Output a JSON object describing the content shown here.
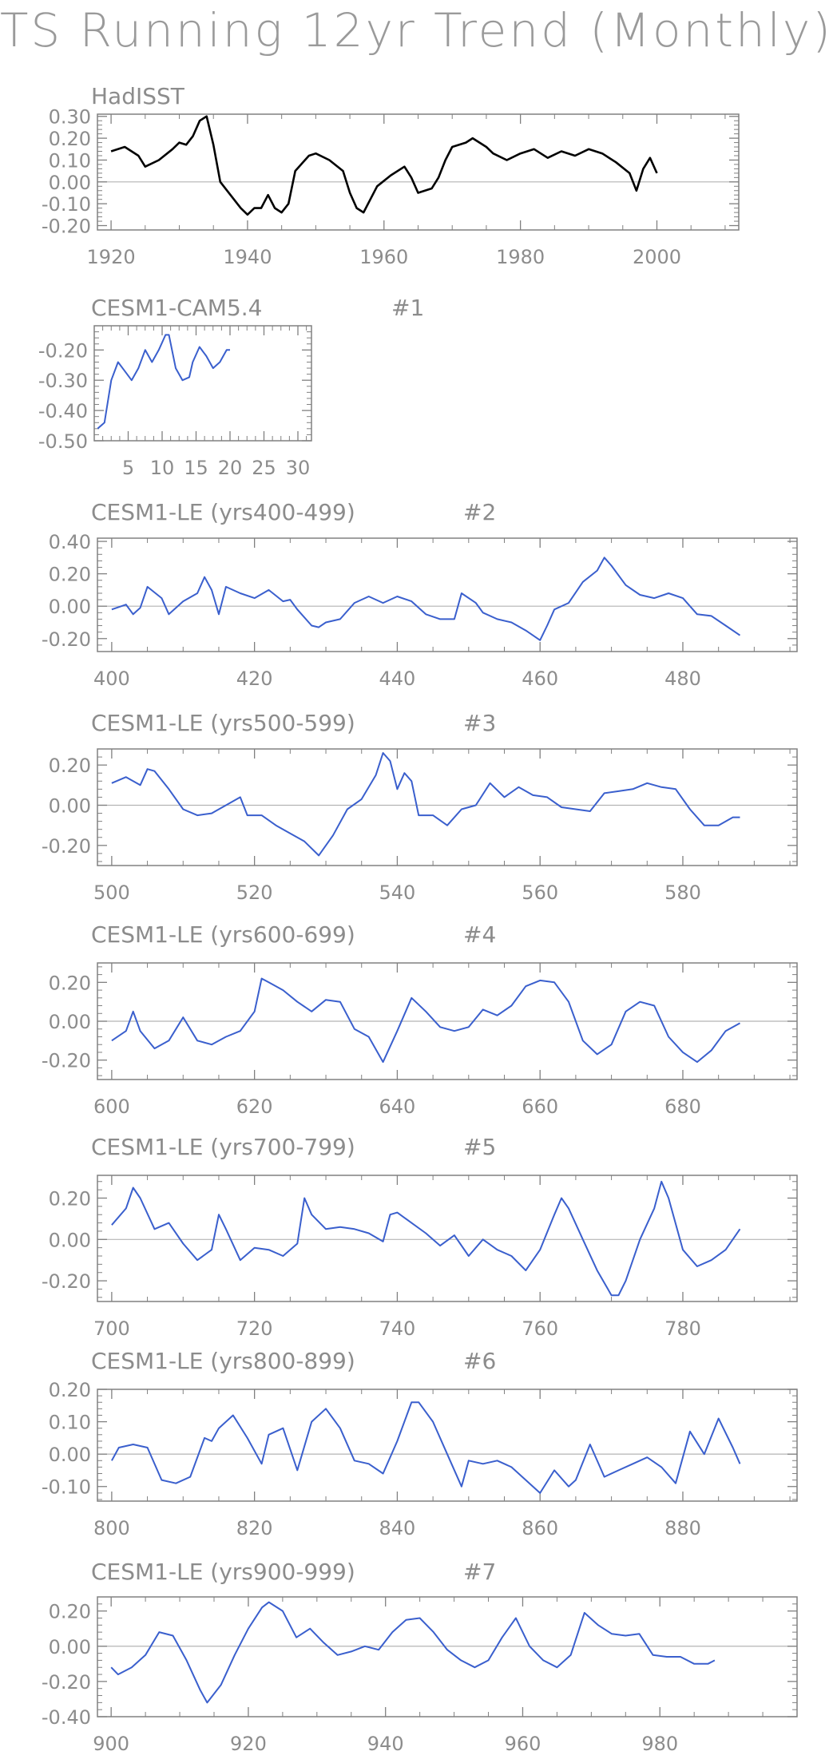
{
  "title": "TS Running 12yr Trend (Monthly)",
  "colors": {
    "obs": "#000000",
    "model": "#3a5fcd",
    "axis": "#808080",
    "zero": "#b4b4b4",
    "text": "#8c8c8c"
  },
  "chart_data": [
    {
      "type": "line",
      "title": "HadISST",
      "subtitle": "",
      "xlim": [
        1918,
        2012
      ],
      "ylim": [
        -0.22,
        0.31
      ],
      "xticks": [
        "1920",
        "1940",
        "1960",
        "1980",
        "2000"
      ],
      "xtick_values": [
        1920,
        1940,
        1960,
        1980,
        2000
      ],
      "yticks": [
        "-0.20",
        "-0.10",
        "0.00",
        "0.10",
        "0.20",
        "0.30"
      ],
      "ytick_values": [
        -0.2,
        -0.1,
        0,
        0.1,
        0.2,
        0.3
      ],
      "series": [
        {
          "color": "#000000",
          "x": [
            1920,
            1922,
            1924,
            1925,
            1927,
            1929,
            1930,
            1931,
            1932,
            1933,
            1934,
            1935,
            1936,
            1938,
            1939,
            1940,
            1941,
            1942,
            1943,
            1944,
            1945,
            1946,
            1947,
            1949,
            1950,
            1952,
            1954,
            1955,
            1956,
            1957,
            1958,
            1959,
            1961,
            1963,
            1964,
            1965,
            1967,
            1968,
            1969,
            1970,
            1972,
            1973,
            1975,
            1976,
            1978,
            1980,
            1982,
            1984,
            1986,
            1988,
            1990,
            1992,
            1994,
            1996,
            1997,
            1998,
            1999,
            2000
          ],
          "y": [
            0.14,
            0.16,
            0.12,
            0.07,
            0.1,
            0.15,
            0.18,
            0.17,
            0.21,
            0.28,
            0.3,
            0.17,
            0.0,
            -0.08,
            -0.12,
            -0.15,
            -0.12,
            -0.12,
            -0.06,
            -0.12,
            -0.14,
            -0.1,
            0.05,
            0.12,
            0.13,
            0.1,
            0.05,
            -0.05,
            -0.12,
            -0.14,
            -0.08,
            -0.02,
            0.03,
            0.07,
            0.02,
            -0.05,
            -0.03,
            0.02,
            0.1,
            0.16,
            0.18,
            0.2,
            0.16,
            0.13,
            0.1,
            0.13,
            0.15,
            0.11,
            0.14,
            0.12,
            0.15,
            0.13,
            0.09,
            0.04,
            -0.04,
            0.06,
            0.11,
            0.04
          ]
        }
      ]
    },
    {
      "type": "line",
      "title": "CESM1-CAM5.4",
      "subtitle": "#1",
      "xlim": [
        0,
        32
      ],
      "ylim": [
        -0.5,
        -0.12
      ],
      "xticks": [
        "5",
        "10",
        "15",
        "20",
        "25",
        "30"
      ],
      "xtick_values": [
        5,
        10,
        15,
        20,
        25,
        30
      ],
      "yticks": [
        "-0.50",
        "-0.40",
        "-0.30",
        "-0.20"
      ],
      "ytick_values": [
        -0.5,
        -0.4,
        -0.3,
        -0.2
      ],
      "series": [
        {
          "color": "#3a5fcd",
          "x": [
            0.5,
            1.5,
            2.5,
            3.5,
            4.5,
            5.5,
            6.5,
            7.5,
            8.5,
            9.5,
            10.5,
            11,
            12,
            13,
            14,
            14.5,
            15.5,
            16.5,
            17.5,
            18.5,
            19.5,
            20
          ],
          "y": [
            -0.46,
            -0.44,
            -0.3,
            -0.24,
            -0.27,
            -0.3,
            -0.26,
            -0.2,
            -0.24,
            -0.2,
            -0.15,
            -0.15,
            -0.26,
            -0.3,
            -0.29,
            -0.24,
            -0.19,
            -0.22,
            -0.26,
            -0.24,
            -0.2,
            -0.2
          ]
        }
      ]
    },
    {
      "type": "line",
      "title": "CESM1-LE (yrs400-499)",
      "subtitle": "#2",
      "xlim": [
        398,
        496
      ],
      "ylim": [
        -0.28,
        0.42
      ],
      "xticks": [
        "400",
        "420",
        "440",
        "460",
        "480"
      ],
      "xtick_values": [
        400,
        420,
        440,
        460,
        480
      ],
      "yticks": [
        "-0.20",
        "0.00",
        "0.20",
        "0.40"
      ],
      "ytick_values": [
        -0.2,
        0,
        0.2,
        0.4
      ],
      "series": [
        {
          "color": "#3a5fcd",
          "x": [
            400,
            402,
            403,
            404,
            405,
            407,
            408,
            410,
            412,
            413,
            414,
            415,
            416,
            418,
            420,
            422,
            424,
            425,
            426,
            428,
            429,
            430,
            432,
            434,
            436,
            438,
            440,
            442,
            444,
            446,
            448,
            449,
            451,
            452,
            454,
            456,
            458,
            460,
            461,
            462,
            464,
            466,
            468,
            469,
            470,
            472,
            474,
            476,
            478,
            480,
            482,
            484,
            486,
            488
          ],
          "y": [
            -0.02,
            0.01,
            -0.05,
            -0.01,
            0.12,
            0.05,
            -0.05,
            0.03,
            0.08,
            0.18,
            0.1,
            -0.05,
            0.12,
            0.08,
            0.05,
            0.1,
            0.03,
            0.04,
            -0.02,
            -0.12,
            -0.13,
            -0.1,
            -0.08,
            0.02,
            0.06,
            0.02,
            0.06,
            0.03,
            -0.05,
            -0.08,
            -0.08,
            0.08,
            0.02,
            -0.04,
            -0.08,
            -0.1,
            -0.15,
            -0.21,
            -0.12,
            -0.02,
            0.02,
            0.15,
            0.22,
            0.3,
            0.25,
            0.13,
            0.07,
            0.05,
            0.08,
            0.05,
            -0.05,
            -0.06,
            -0.12,
            -0.18
          ]
        }
      ]
    },
    {
      "type": "line",
      "title": "CESM1-LE (yrs500-599)",
      "subtitle": "#3",
      "xlim": [
        498,
        596
      ],
      "ylim": [
        -0.3,
        0.28
      ],
      "xticks": [
        "500",
        "520",
        "540",
        "560",
        "580"
      ],
      "xtick_values": [
        500,
        520,
        540,
        560,
        580
      ],
      "yticks": [
        "-0.20",
        "0.00",
        "0.20"
      ],
      "ytick_values": [
        -0.2,
        0,
        0.2
      ],
      "series": [
        {
          "color": "#3a5fcd",
          "x": [
            500,
            502,
            504,
            505,
            506,
            508,
            510,
            512,
            514,
            516,
            518,
            519,
            521,
            523,
            525,
            527,
            529,
            531,
            533,
            535,
            537,
            538,
            539,
            540,
            541,
            542,
            543,
            545,
            547,
            549,
            551,
            553,
            555,
            557,
            559,
            561,
            563,
            565,
            567,
            569,
            571,
            573,
            575,
            577,
            579,
            581,
            583,
            585,
            587,
            588
          ],
          "y": [
            0.11,
            0.14,
            0.1,
            0.18,
            0.17,
            0.08,
            -0.02,
            -0.05,
            -0.04,
            0.0,
            0.04,
            -0.05,
            -0.05,
            -0.1,
            -0.14,
            -0.18,
            -0.25,
            -0.15,
            -0.02,
            0.03,
            0.15,
            0.26,
            0.22,
            0.08,
            0.16,
            0.12,
            -0.05,
            -0.05,
            -0.1,
            -0.02,
            0.0,
            0.11,
            0.04,
            0.09,
            0.05,
            0.04,
            -0.01,
            -0.02,
            -0.03,
            0.06,
            0.07,
            0.08,
            0.11,
            0.09,
            0.08,
            -0.02,
            -0.1,
            -0.1,
            -0.06,
            -0.06
          ]
        }
      ]
    },
    {
      "type": "line",
      "title": "CESM1-LE (yrs600-699)",
      "subtitle": "#4",
      "xlim": [
        598,
        696
      ],
      "ylim": [
        -0.3,
        0.3
      ],
      "xticks": [
        "600",
        "620",
        "640",
        "660",
        "680"
      ],
      "xtick_values": [
        600,
        620,
        640,
        660,
        680
      ],
      "yticks": [
        "-0.20",
        "0.00",
        "0.20"
      ],
      "ytick_values": [
        -0.2,
        0,
        0.2
      ],
      "series": [
        {
          "color": "#3a5fcd",
          "x": [
            600,
            602,
            603,
            604,
            606,
            608,
            610,
            612,
            614,
            616,
            618,
            620,
            621,
            622,
            624,
            626,
            628,
            630,
            632,
            634,
            636,
            638,
            640,
            642,
            644,
            646,
            648,
            650,
            652,
            654,
            656,
            658,
            660,
            662,
            664,
            666,
            668,
            670,
            672,
            674,
            676,
            678,
            680,
            682,
            684,
            686,
            688
          ],
          "y": [
            -0.1,
            -0.05,
            0.05,
            -0.05,
            -0.14,
            -0.1,
            0.02,
            -0.1,
            -0.12,
            -0.08,
            -0.05,
            0.05,
            0.22,
            0.2,
            0.16,
            0.1,
            0.05,
            0.11,
            0.1,
            -0.04,
            -0.08,
            -0.21,
            -0.05,
            0.12,
            0.05,
            -0.03,
            -0.05,
            -0.03,
            0.06,
            0.03,
            0.08,
            0.18,
            0.21,
            0.2,
            0.1,
            -0.1,
            -0.17,
            -0.12,
            0.05,
            0.1,
            0.08,
            -0.08,
            -0.16,
            -0.21,
            -0.15,
            -0.05,
            -0.01
          ]
        }
      ]
    },
    {
      "type": "line",
      "title": "CESM1-LE (yrs700-799)",
      "subtitle": "#5",
      "xlim": [
        698,
        796
      ],
      "ylim": [
        -0.3,
        0.31
      ],
      "xticks": [
        "700",
        "720",
        "740",
        "760",
        "780"
      ],
      "xtick_values": [
        700,
        720,
        740,
        760,
        780
      ],
      "yticks": [
        "-0.20",
        "0.00",
        "0.20"
      ],
      "ytick_values": [
        -0.2,
        0,
        0.2
      ],
      "series": [
        {
          "color": "#3a5fcd",
          "x": [
            700,
            702,
            703,
            704,
            706,
            708,
            710,
            712,
            714,
            715,
            716,
            718,
            720,
            722,
            724,
            726,
            727,
            728,
            730,
            732,
            734,
            736,
            738,
            739,
            740,
            742,
            744,
            746,
            748,
            750,
            752,
            754,
            756,
            758,
            760,
            762,
            763,
            764,
            766,
            768,
            770,
            771,
            772,
            774,
            776,
            777,
            778,
            780,
            782,
            784,
            786,
            788
          ],
          "y": [
            0.07,
            0.15,
            0.25,
            0.2,
            0.05,
            0.08,
            -0.02,
            -0.1,
            -0.05,
            0.12,
            0.05,
            -0.1,
            -0.04,
            -0.05,
            -0.08,
            -0.02,
            0.2,
            0.12,
            0.05,
            0.06,
            0.05,
            0.03,
            -0.01,
            0.12,
            0.13,
            0.08,
            0.03,
            -0.03,
            0.02,
            -0.08,
            0.0,
            -0.05,
            -0.08,
            -0.15,
            -0.05,
            0.12,
            0.2,
            0.15,
            0.0,
            -0.15,
            -0.27,
            -0.27,
            -0.2,
            0.0,
            0.15,
            0.28,
            0.2,
            -0.05,
            -0.13,
            -0.1,
            -0.05,
            0.05
          ]
        }
      ]
    },
    {
      "type": "line",
      "title": "CESM1-LE (yrs800-899)",
      "subtitle": "#6",
      "xlim": [
        798,
        896
      ],
      "ylim": [
        -0.145,
        0.2
      ],
      "xticks": [
        "800",
        "820",
        "840",
        "860",
        "880"
      ],
      "xtick_values": [
        800,
        820,
        840,
        860,
        880
      ],
      "yticks": [
        "-0.10",
        "0.00",
        "0.10",
        "0.20"
      ],
      "ytick_values": [
        -0.1,
        0,
        0.1,
        0.2
      ],
      "series": [
        {
          "color": "#3a5fcd",
          "x": [
            800,
            801,
            803,
            805,
            807,
            809,
            811,
            813,
            814,
            815,
            817,
            819,
            821,
            822,
            824,
            826,
            828,
            830,
            832,
            834,
            836,
            838,
            840,
            842,
            843,
            845,
            847,
            849,
            850,
            852,
            854,
            856,
            858,
            860,
            862,
            864,
            865,
            867,
            869,
            871,
            873,
            875,
            877,
            879,
            881,
            883,
            885,
            887,
            888
          ],
          "y": [
            -0.02,
            0.02,
            0.03,
            0.02,
            -0.08,
            -0.09,
            -0.07,
            0.05,
            0.04,
            0.08,
            0.12,
            0.05,
            -0.03,
            0.06,
            0.08,
            -0.05,
            0.1,
            0.14,
            0.08,
            -0.02,
            -0.03,
            -0.06,
            0.04,
            0.16,
            0.16,
            0.1,
            0.0,
            -0.1,
            -0.02,
            -0.03,
            -0.02,
            -0.04,
            -0.08,
            -0.12,
            -0.05,
            -0.1,
            -0.08,
            0.03,
            -0.07,
            -0.05,
            -0.03,
            -0.01,
            -0.04,
            -0.09,
            0.07,
            0.0,
            0.11,
            0.02,
            -0.03
          ]
        }
      ]
    },
    {
      "type": "line",
      "title": "CESM1-LE (yrs900-999)",
      "subtitle": "#7",
      "xlim": [
        898,
        1000
      ],
      "ylim": [
        -0.4,
        0.28
      ],
      "xticks": [
        "900",
        "920",
        "940",
        "960",
        "980"
      ],
      "xtick_values": [
        900,
        920,
        940,
        960,
        980
      ],
      "yticks": [
        "-0.40",
        "-0.20",
        "0.00",
        "0.20"
      ],
      "ytick_values": [
        -0.4,
        -0.2,
        0,
        0.2
      ],
      "series": [
        {
          "color": "#3a5fcd",
          "x": [
            900,
            901,
            903,
            905,
            907,
            909,
            911,
            913,
            914,
            916,
            918,
            920,
            922,
            923,
            925,
            927,
            929,
            931,
            933,
            935,
            937,
            939,
            941,
            943,
            945,
            947,
            949,
            951,
            953,
            955,
            957,
            959,
            961,
            963,
            965,
            967,
            969,
            971,
            973,
            975,
            977,
            979,
            981,
            983,
            985,
            987,
            988
          ],
          "y": [
            -0.12,
            -0.16,
            -0.12,
            -0.05,
            0.08,
            0.06,
            -0.08,
            -0.25,
            -0.32,
            -0.22,
            -0.05,
            0.1,
            0.22,
            0.25,
            0.2,
            0.05,
            0.1,
            0.02,
            -0.05,
            -0.03,
            0.0,
            -0.02,
            0.08,
            0.15,
            0.16,
            0.08,
            -0.02,
            -0.08,
            -0.12,
            -0.08,
            0.05,
            0.16,
            0.0,
            -0.08,
            -0.12,
            -0.05,
            0.19,
            0.12,
            0.07,
            0.06,
            0.07,
            -0.05,
            -0.06,
            -0.06,
            -0.1,
            -0.1,
            -0.08
          ]
        }
      ]
    }
  ]
}
